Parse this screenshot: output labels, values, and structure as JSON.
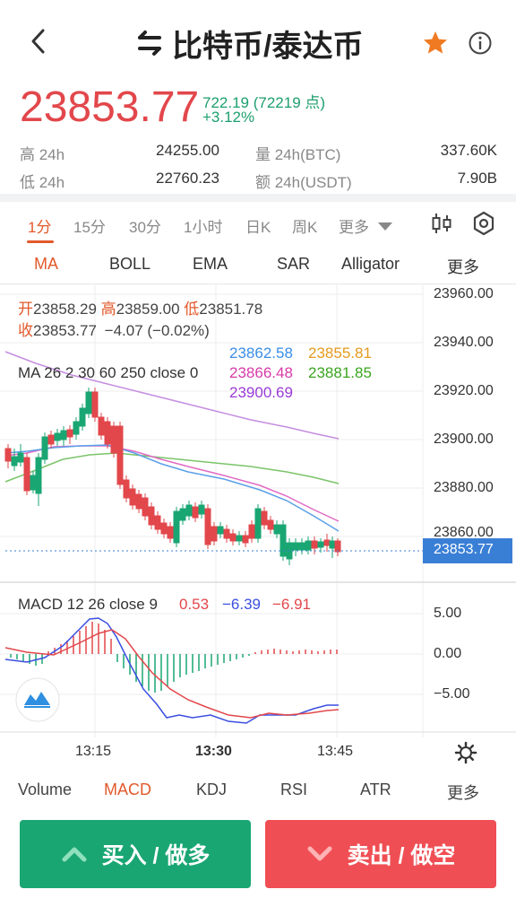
{
  "header": {
    "title": "比特币/泰达币"
  },
  "ticker": {
    "price": "23853.77",
    "change": "722.19 (72219 点)",
    "change_pct": "+3.12%",
    "high_label": "高 24h",
    "high_value": "24255.00",
    "low_label": "低 24h",
    "low_value": "22760.23",
    "vol_label": "量 24h(BTC)",
    "vol_value": "337.60K",
    "amt_label": "额 24h(USDT)",
    "amt_value": "7.90B"
  },
  "intervals": [
    "1分",
    "15分",
    "30分",
    "1小时",
    "日K",
    "周K",
    "更多"
  ],
  "indicators": [
    "MA",
    "BOLL",
    "EMA",
    "SAR",
    "Alligator",
    "更多"
  ],
  "ohlc": {
    "open_label": "开",
    "open": "23858.29",
    "high_label": "高",
    "high": "23859.00",
    "low_label": "低",
    "low": "23851.78",
    "close_label": "收",
    "close": "23853.77",
    "change": "−4.07 (−0.02%)"
  },
  "ma": {
    "label": "MA 26 2 30 60 250 close 0",
    "values": [
      "23862.58",
      "23855.81",
      "23866.48",
      "23881.85",
      "23900.69"
    ]
  },
  "price_axis": [
    "23960.00",
    "23940.00",
    "23920.00",
    "23900.00",
    "23880.00",
    "23860.00"
  ],
  "current_price_tag": "23853.77",
  "macd": {
    "label": "MACD 12 26 close 9",
    "v1": "0.53",
    "v2": "−6.39",
    "v3": "−6.91"
  },
  "macd_axis": [
    "5.00",
    "0.00",
    "−5.00"
  ],
  "time_axis": [
    "13:15",
    "13:30",
    "13:45"
  ],
  "bottom_tabs": [
    "Volume",
    "MACD",
    "KDJ",
    "RSI",
    "ATR",
    "更多"
  ],
  "buttons": {
    "buy": "买入 / 做多",
    "sell": "卖出 / 做空"
  },
  "colors": {
    "up": "#e2474b",
    "down": "#1aa673",
    "accent": "#e2592b",
    "ma1": "#3a8ee6",
    "ma2": "#e69a1f",
    "ma3": "#d83aa8",
    "ma4": "#3aa51f",
    "ma5": "#9a3ad6"
  },
  "icons": {
    "back": "chevron-left-icon",
    "swap": "swap-icon",
    "favorite": "star-icon",
    "info": "info-icon",
    "dropdown": "caret-down-icon",
    "candle": "candlestick-icon",
    "settings": "hexagon-settings-icon",
    "chart_type": "wave-chart-icon",
    "gear": "gear-icon",
    "buy_arrow": "chevron-up-icon",
    "sell_arrow": "chevron-down-icon"
  }
}
